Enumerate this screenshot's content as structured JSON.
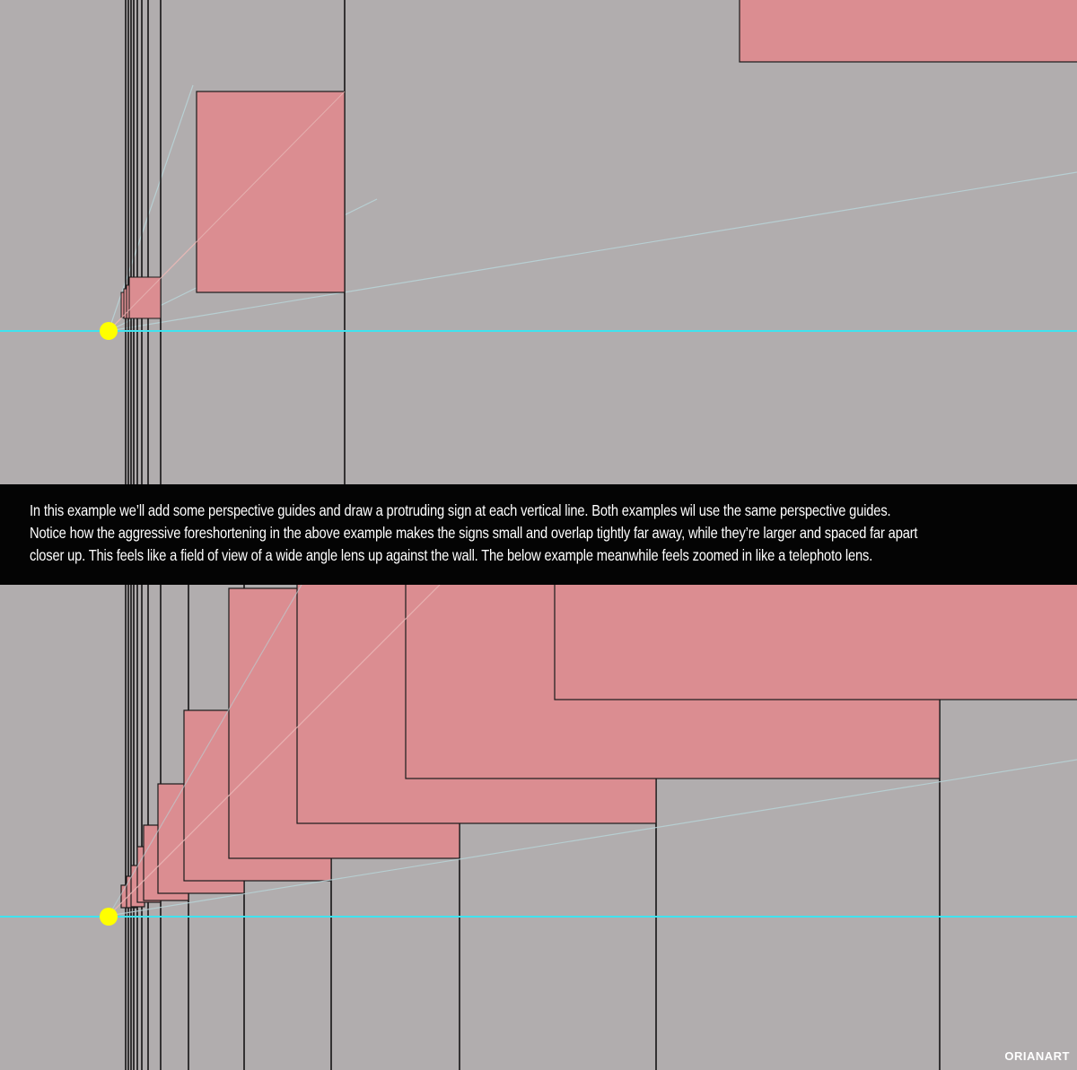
{
  "caption": {
    "line1": "In this example we’ll add some perspective guides and draw a protruding sign at each vertical line. Both examples wil use the same perspective guides.",
    "line2": "Notice how the aggressive foreshortening in the above example makes the signs small and overlap tightly far away, while they’re larger and spaced far apart",
    "line3": "closer up. This feels like a field of view of a wide angle lens up against the wall. The below example meanwhile feels zoomed in like a telephoto lens."
  },
  "watermark": "ORIANART",
  "colors": {
    "background": "#b1adae",
    "sign_fill": "#db8d91",
    "horizon_line": "#3fe3ef",
    "vanishing_point": "#ffff00",
    "guide_line": "#b9d3d7",
    "caption_bar": "#040404"
  },
  "icons": {
    "vanishing_point": "yellow-dot-icon"
  }
}
